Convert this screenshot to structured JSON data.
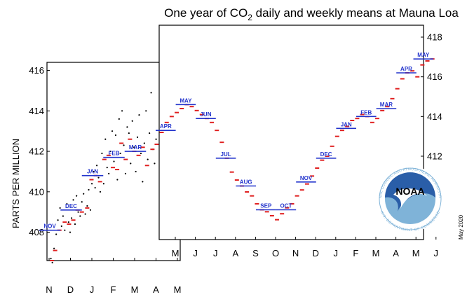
{
  "chart_data": {
    "type": "scatter",
    "title_parts": [
      "One year of CO",
      "2",
      " daily and weekly means at Mauna Loa"
    ],
    "ylabel": "PARTS PER MILLION",
    "date_label": "May 2020",
    "logo": {
      "name": "NOAA",
      "ring_text": "NATIONAL OCEANIC AND ATMOSPHERIC ADMINISTRATION",
      "bottom_text": "U.S. DEPARTMENT OF COMMERCE",
      "color": "#7fb3d8"
    },
    "colors": {
      "daily": "#000000",
      "weekly": "#e02020",
      "monthly": "#2233cc"
    },
    "back_panel": {
      "ylim": [
        406.6,
        416.4
      ],
      "yticks": [
        408,
        410,
        412,
        414,
        416
      ],
      "x_labels": [
        "N",
        "D",
        "J",
        "F",
        "M",
        "A",
        "M"
      ],
      "monthly": [
        {
          "label": "NOV",
          "month": 0,
          "value": 408.1
        },
        {
          "label": "DEC",
          "month": 1,
          "value": 409.1
        },
        {
          "label": "JAN",
          "month": 2,
          "value": 410.8
        },
        {
          "label": "FEB",
          "month": 3,
          "value": 411.7
        },
        {
          "label": "MAR",
          "month": 4,
          "value": 412.0
        }
      ],
      "weekly": [
        [
          0.1,
          406.6
        ],
        [
          0.25,
          407.1
        ],
        [
          0.45,
          408.1
        ],
        [
          0.7,
          408.5
        ],
        [
          0.9,
          408.4
        ],
        [
          1.1,
          408.6
        ],
        [
          1.3,
          409.1
        ],
        [
          1.5,
          409.0
        ],
        [
          1.75,
          409.2
        ],
        [
          1.95,
          410.6
        ],
        [
          2.15,
          410.8
        ],
        [
          2.35,
          410.5
        ],
        [
          2.55,
          411.6
        ],
        [
          2.75,
          411.8
        ],
        [
          2.95,
          411.2
        ],
        [
          3.15,
          411.1
        ],
        [
          3.35,
          412.4
        ],
        [
          3.55,
          411.6
        ],
        [
          3.75,
          412.6
        ],
        [
          3.95,
          412.0
        ],
        [
          4.15,
          411.8
        ],
        [
          4.35,
          412.2
        ],
        [
          4.55,
          411.3
        ],
        [
          4.8,
          412.1
        ]
      ],
      "daily": [
        [
          0.05,
          406.7
        ],
        [
          0.12,
          406.5
        ],
        [
          0.2,
          407.2
        ],
        [
          0.3,
          407.9
        ],
        [
          0.38,
          408.6
        ],
        [
          0.48,
          409.2
        ],
        [
          0.55,
          408.3
        ],
        [
          0.62,
          408.8
        ],
        [
          0.7,
          408.1
        ],
        [
          0.8,
          409.4
        ],
        [
          0.88,
          408.5
        ],
        [
          0.95,
          408.0
        ],
        [
          1.02,
          408.7
        ],
        [
          1.1,
          409.6
        ],
        [
          1.18,
          408.4
        ],
        [
          1.25,
          409.8
        ],
        [
          1.33,
          409.0
        ],
        [
          1.42,
          408.8
        ],
        [
          1.5,
          409.5
        ],
        [
          1.58,
          409.9
        ],
        [
          1.66,
          408.9
        ],
        [
          1.75,
          409.3
        ],
        [
          1.82,
          410.1
        ],
        [
          1.9,
          409.1
        ],
        [
          1.97,
          410.4
        ],
        [
          2.05,
          411.0
        ],
        [
          2.12,
          410.2
        ],
        [
          2.2,
          411.3
        ],
        [
          2.28,
          410.7
        ],
        [
          2.36,
          410.0
        ],
        [
          2.44,
          411.9
        ],
        [
          2.52,
          410.4
        ],
        [
          2.6,
          412.6
        ],
        [
          2.68,
          411.2
        ],
        [
          2.76,
          410.9
        ],
        [
          2.84,
          412.0
        ],
        [
          2.92,
          413.0
        ],
        [
          3.0,
          411.5
        ],
        [
          3.08,
          412.8
        ],
        [
          3.16,
          410.6
        ],
        [
          3.24,
          413.6
        ],
        [
          3.3,
          411.9
        ],
        [
          3.38,
          414.0
        ],
        [
          3.46,
          412.3
        ],
        [
          3.54,
          410.9
        ],
        [
          3.62,
          413.2
        ],
        [
          3.7,
          412.9
        ],
        [
          3.78,
          411.4
        ],
        [
          3.86,
          413.5
        ],
        [
          3.94,
          412.2
        ],
        [
          4.02,
          411.0
        ],
        [
          4.1,
          412.7
        ],
        [
          4.18,
          413.8
        ],
        [
          4.26,
          411.9
        ],
        [
          4.34,
          410.5
        ],
        [
          4.42,
          412.4
        ],
        [
          4.5,
          414.0
        ],
        [
          4.58,
          411.6
        ],
        [
          4.66,
          412.9
        ],
        [
          4.74,
          414.9
        ],
        [
          4.82,
          412.1
        ],
        [
          4.9,
          411.4
        ],
        [
          4.97,
          412.6
        ]
      ]
    },
    "front_panel": {
      "ylim": [
        407.8,
        418.6
      ],
      "yticks": [
        412,
        414,
        416,
        418
      ],
      "x_labels": [
        "M",
        "J",
        "J",
        "A",
        "S",
        "O",
        "N",
        "D",
        "J",
        "F",
        "M",
        "A",
        "M",
        "J"
      ],
      "monthly": [
        {
          "label": "APR",
          "month": 0.5,
          "value": 413.3
        },
        {
          "label": "MAY",
          "month": 1.5,
          "value": 414.6
        },
        {
          "label": "JUN",
          "month": 2.5,
          "value": 413.9
        },
        {
          "label": "JUL",
          "month": 3.5,
          "value": 411.9
        },
        {
          "label": "AUG",
          "month": 4.5,
          "value": 410.5
        },
        {
          "label": "SEP",
          "month": 5.5,
          "value": 409.3
        },
        {
          "label": "OCT",
          "month": 6.5,
          "value": 409.3
        },
        {
          "label": "NOV",
          "month": 7.5,
          "value": 410.7
        },
        {
          "label": "DEC",
          "month": 8.5,
          "value": 411.9
        },
        {
          "label": "JAN",
          "month": 9.5,
          "value": 413.4
        },
        {
          "label": "FEB",
          "month": 10.5,
          "value": 414.0
        },
        {
          "label": "MAR",
          "month": 11.5,
          "value": 414.4
        },
        {
          "label": "APR",
          "month": 12.5,
          "value": 416.2
        },
        {
          "label": "MAY",
          "month": 13.35,
          "value": 416.9
        }
      ],
      "weekly": [
        [
          0.05,
          412.6
        ],
        [
          0.3,
          413.2
        ],
        [
          0.55,
          413.7
        ],
        [
          0.8,
          414.0
        ],
        [
          1.05,
          414.2
        ],
        [
          1.3,
          414.4
        ],
        [
          1.55,
          414.6
        ],
        [
          1.8,
          414.5
        ],
        [
          2.05,
          414.3
        ],
        [
          2.3,
          414.1
        ],
        [
          2.55,
          413.9
        ],
        [
          2.8,
          413.7
        ],
        [
          3.05,
          413.3
        ],
        [
          3.3,
          412.7
        ],
        [
          3.55,
          411.9
        ],
        [
          3.8,
          411.2
        ],
        [
          4.05,
          410.8
        ],
        [
          4.3,
          410.5
        ],
        [
          4.55,
          410.2
        ],
        [
          4.8,
          410.0
        ],
        [
          5.05,
          409.6
        ],
        [
          5.3,
          409.3
        ],
        [
          5.55,
          409.2
        ],
        [
          5.8,
          409.0
        ],
        [
          6.05,
          408.8
        ],
        [
          6.3,
          409.1
        ],
        [
          6.55,
          409.4
        ],
        [
          6.8,
          409.6
        ],
        [
          7.05,
          410.0
        ],
        [
          7.3,
          410.3
        ],
        [
          7.55,
          410.6
        ],
        [
          7.8,
          411.0
        ],
        [
          8.05,
          411.4
        ],
        [
          8.3,
          411.8
        ],
        [
          8.55,
          412.0
        ],
        [
          8.8,
          412.5
        ],
        [
          9.05,
          413.0
        ],
        [
          9.3,
          413.3
        ],
        [
          9.55,
          413.5
        ],
        [
          9.8,
          413.8
        ],
        [
          10.05,
          413.9
        ],
        [
          10.3,
          414.1
        ],
        [
          10.55,
          414.0
        ],
        [
          10.8,
          413.7
        ],
        [
          11.05,
          413.9
        ],
        [
          11.3,
          414.3
        ],
        [
          11.55,
          414.5
        ],
        [
          11.8,
          414.9
        ],
        [
          12.05,
          415.4
        ],
        [
          12.3,
          415.9
        ],
        [
          12.55,
          416.2
        ],
        [
          12.8,
          416.3
        ],
        [
          13.05,
          416.0
        ],
        [
          13.3,
          416.6
        ],
        [
          13.55,
          416.8
        ],
        [
          13.8,
          416.9
        ]
      ]
    }
  }
}
